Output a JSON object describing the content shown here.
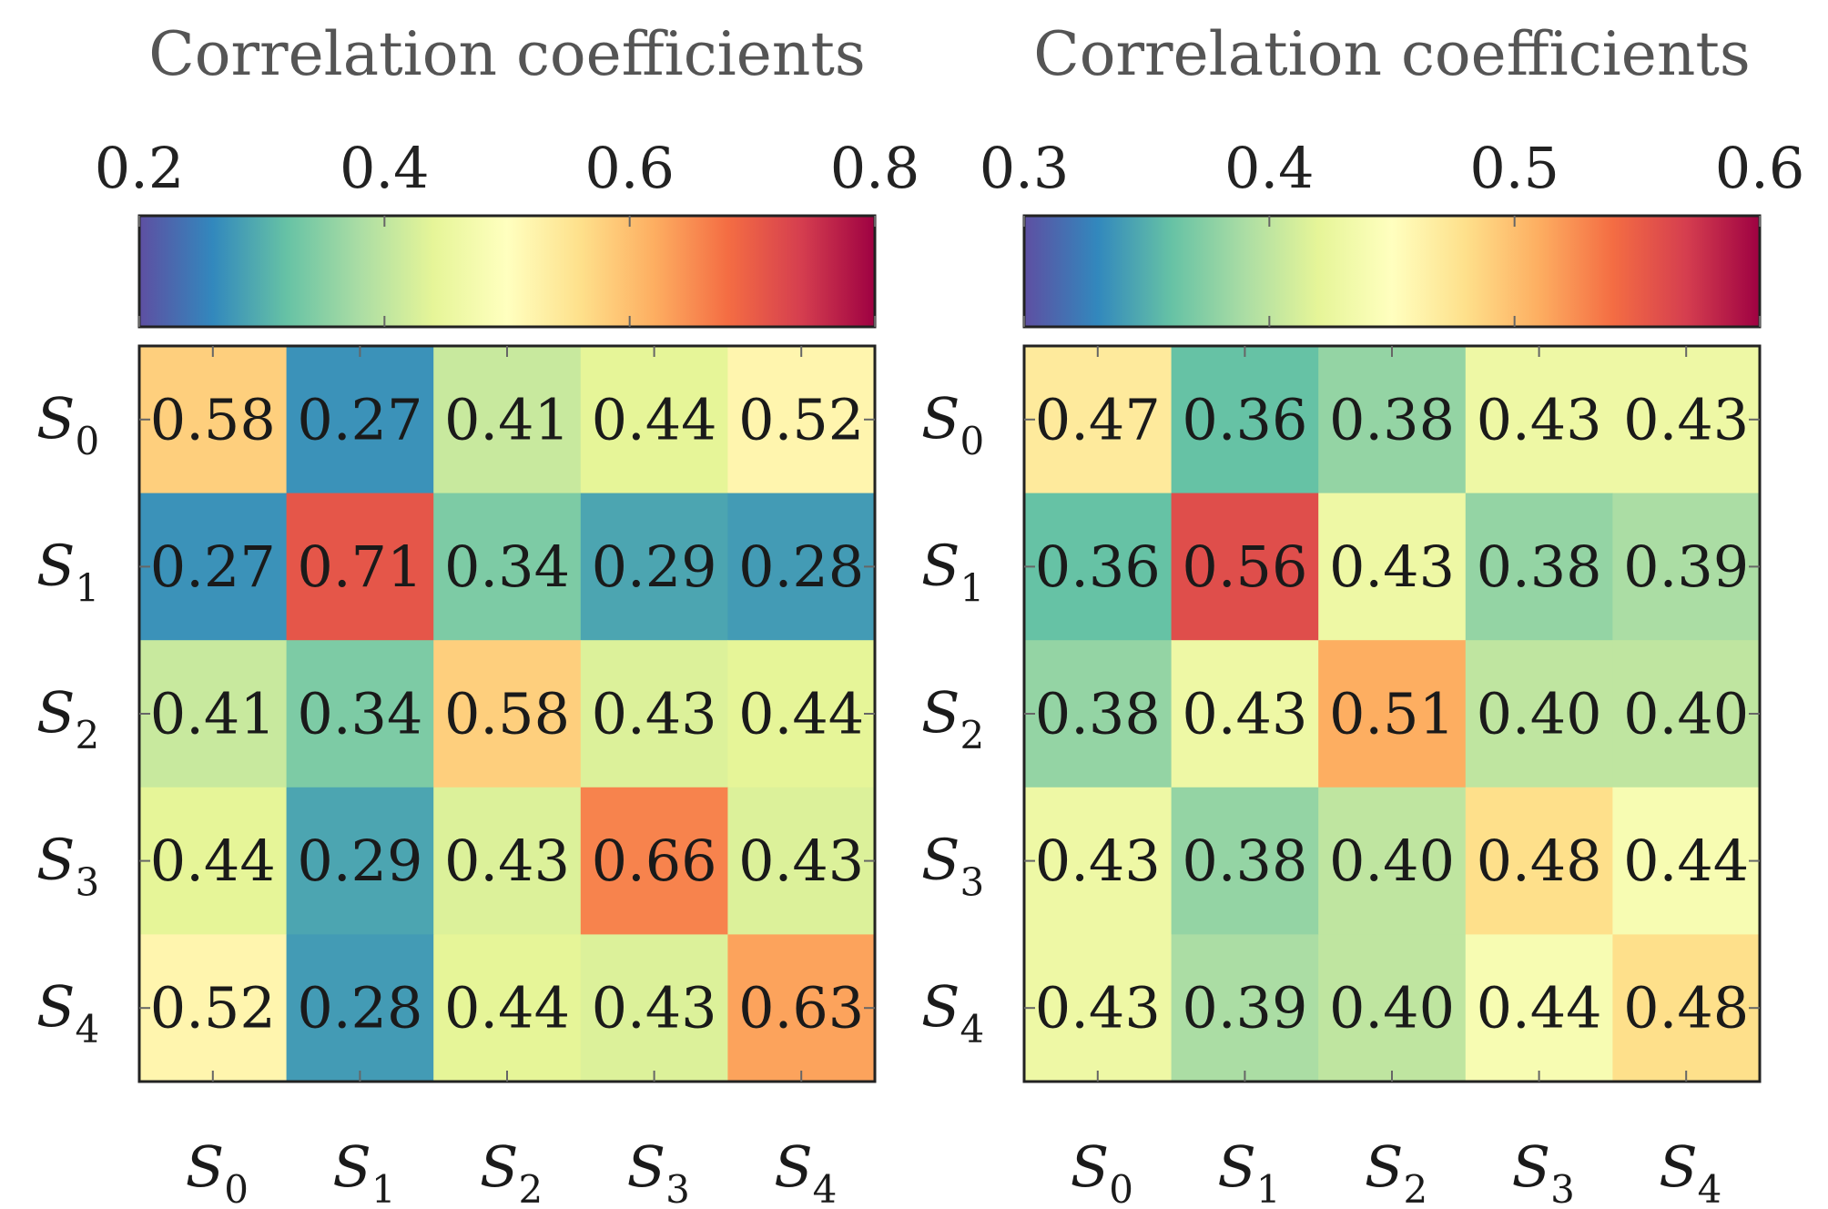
{
  "chart_data": [
    {
      "type": "heatmap",
      "title": "Correlation coefficients",
      "x_categories": [
        "S0",
        "S1",
        "S2",
        "S3",
        "S4"
      ],
      "y_categories": [
        "S0",
        "S1",
        "S2",
        "S3",
        "S4"
      ],
      "values": [
        [
          0.58,
          0.27,
          0.41,
          0.44,
          0.52
        ],
        [
          0.27,
          0.71,
          0.34,
          0.29,
          0.28
        ],
        [
          0.41,
          0.34,
          0.58,
          0.43,
          0.44
        ],
        [
          0.44,
          0.29,
          0.43,
          0.66,
          0.43
        ],
        [
          0.52,
          0.28,
          0.44,
          0.43,
          0.63
        ]
      ],
      "colorbar": {
        "range": [
          0.2,
          0.8
        ],
        "ticks": [
          "0.2",
          "0.4",
          "0.6",
          "0.8"
        ],
        "tick_values": [
          0.2,
          0.4,
          0.6,
          0.8
        ],
        "colormap": "Spectral (reversed)",
        "placement": "top"
      }
    },
    {
      "type": "heatmap",
      "title": "Correlation coefficients",
      "x_categories": [
        "S0",
        "S1",
        "S2",
        "S3",
        "S4"
      ],
      "y_categories": [
        "S0",
        "S1",
        "S2",
        "S3",
        "S4"
      ],
      "values": [
        [
          0.47,
          0.36,
          0.38,
          0.43,
          0.43
        ],
        [
          0.36,
          0.56,
          0.43,
          0.38,
          0.39
        ],
        [
          0.38,
          0.43,
          0.51,
          0.4,
          0.4
        ],
        [
          0.43,
          0.38,
          0.4,
          0.48,
          0.44
        ],
        [
          0.43,
          0.39,
          0.4,
          0.44,
          0.48
        ]
      ],
      "colorbar": {
        "range": [
          0.3,
          0.6
        ],
        "ticks": [
          "0.3",
          "0.4",
          "0.5",
          "0.6"
        ],
        "tick_values": [
          0.3,
          0.4,
          0.5,
          0.6
        ],
        "colormap": "Spectral (reversed)",
        "placement": "top"
      }
    }
  ],
  "colormap_stops": [
    "#5e4fa2",
    "#3288bd",
    "#66c2a5",
    "#abdda4",
    "#e6f598",
    "#ffffbf",
    "#fee08b",
    "#fdae61",
    "#f46d43",
    "#d53e4f",
    "#9e0142"
  ]
}
